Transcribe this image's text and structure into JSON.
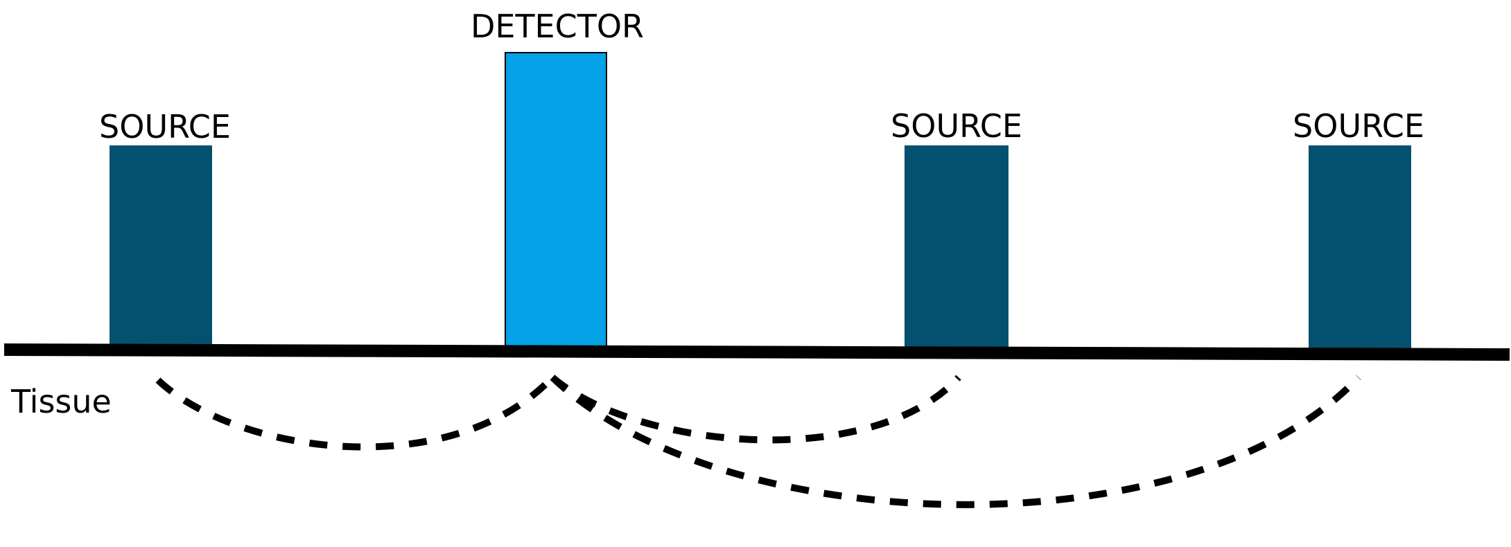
{
  "labels": {
    "source_1": "SOURCE",
    "detector": "DETECTOR",
    "source_2": "SOURCE",
    "source_3": "SOURCE",
    "tissue": "Tissue"
  },
  "colors": {
    "source": "#03516E",
    "detector": "#05A1E6",
    "line": "#000000",
    "background": "#FFFFFF"
  }
}
